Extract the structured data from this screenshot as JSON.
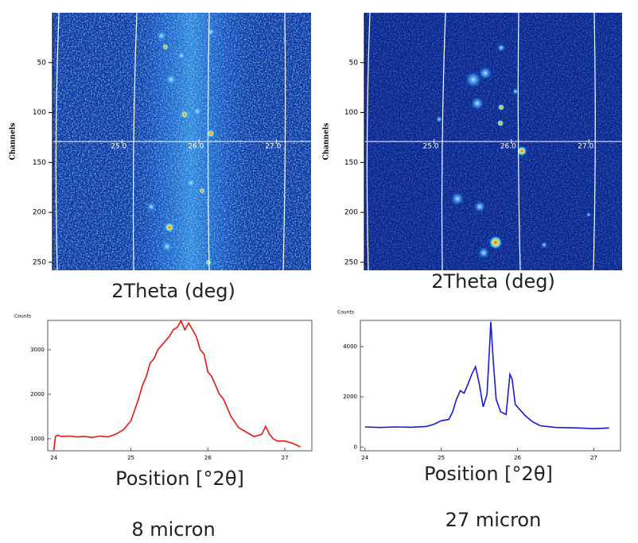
{
  "chart_data": [
    {
      "type": "heatmap",
      "ylabel": "Channels",
      "xlabel": "2Theta (deg)",
      "xlim": [
        24.1,
        27.45
      ],
      "xticks": [
        {
          "value": 25,
          "label": "25.0"
        },
        {
          "value": 26,
          "label": "26.0"
        },
        {
          "value": 27,
          "label": "27.0"
        }
      ],
      "ylim": [
        0,
        258
      ],
      "yticks": [
        50,
        100,
        150,
        200,
        250
      ]
    },
    {
      "type": "heatmap",
      "ylabel": "Channels",
      "xlabel": "2Theta (deg)",
      "xlim": [
        24.1,
        27.43
      ],
      "xticks": [
        {
          "value": 25,
          "label": "25.0"
        },
        {
          "value": 26,
          "label": "26.0"
        },
        {
          "value": 27,
          "label": "27.0"
        }
      ],
      "ylim": [
        0,
        258
      ],
      "yticks": [
        50,
        100,
        150,
        200,
        250
      ]
    },
    {
      "type": "line",
      "ylabel": "Counts",
      "xlabel": "Position [°2θ]",
      "color": "#e8170f",
      "xlim": [
        23.92,
        27.35
      ],
      "xticks": [
        24,
        25,
        26,
        27
      ],
      "ylim": [
        730,
        3660
      ],
      "yticks": [
        1000,
        2000,
        3000
      ],
      "x": [
        24.0,
        24.02,
        24.05,
        24.1,
        24.2,
        24.3,
        24.4,
        24.5,
        24.6,
        24.7,
        24.8,
        24.9,
        25.0,
        25.05,
        25.1,
        25.15,
        25.2,
        25.25,
        25.3,
        25.35,
        25.4,
        25.45,
        25.5,
        25.55,
        25.6,
        25.65,
        25.7,
        25.75,
        25.8,
        25.85,
        25.9,
        25.95,
        26.0,
        26.05,
        26.1,
        26.15,
        26.2,
        26.3,
        26.4,
        26.5,
        26.6,
        26.7,
        26.75,
        26.8,
        26.85,
        26.9,
        27.0,
        27.1,
        27.2
      ],
      "values": [
        750,
        1050,
        1080,
        1050,
        1060,
        1040,
        1050,
        1030,
        1060,
        1040,
        1100,
        1200,
        1400,
        1650,
        1900,
        2200,
        2400,
        2700,
        2800,
        3000,
        3100,
        3200,
        3300,
        3450,
        3500,
        3650,
        3450,
        3600,
        3450,
        3300,
        3000,
        2900,
        2500,
        2400,
        2200,
        2000,
        1900,
        1500,
        1250,
        1150,
        1050,
        1100,
        1280,
        1100,
        1000,
        950,
        950,
        900,
        820
      ]
    },
    {
      "type": "line",
      "ylabel": "Counts",
      "xlabel": "Position [°2θ]",
      "color": "#1a1ad6",
      "xlim": [
        23.94,
        27.35
      ],
      "xticks": [
        24,
        25,
        26,
        27
      ],
      "ylim": [
        -150,
        5050
      ],
      "yticks": [
        0,
        2000,
        4000
      ],
      "x": [
        24.0,
        24.2,
        24.4,
        24.6,
        24.8,
        24.9,
        25.0,
        25.1,
        25.15,
        25.2,
        25.25,
        25.3,
        25.35,
        25.4,
        25.45,
        25.5,
        25.55,
        25.6,
        25.63,
        25.65,
        25.68,
        25.72,
        25.78,
        25.85,
        25.9,
        25.93,
        25.97,
        26.0,
        26.1,
        26.2,
        26.3,
        26.5,
        26.8,
        27.0,
        27.2
      ],
      "values": [
        800,
        780,
        800,
        790,
        820,
        900,
        1050,
        1100,
        1400,
        1900,
        2250,
        2150,
        2500,
        2900,
        3200,
        2500,
        1600,
        2100,
        3800,
        5000,
        3500,
        1900,
        1400,
        1300,
        2900,
        2700,
        1700,
        1600,
        1250,
        1000,
        850,
        780,
        760,
        730,
        760
      ]
    }
  ],
  "captions": [
    "8 micron",
    "27 micron"
  ]
}
